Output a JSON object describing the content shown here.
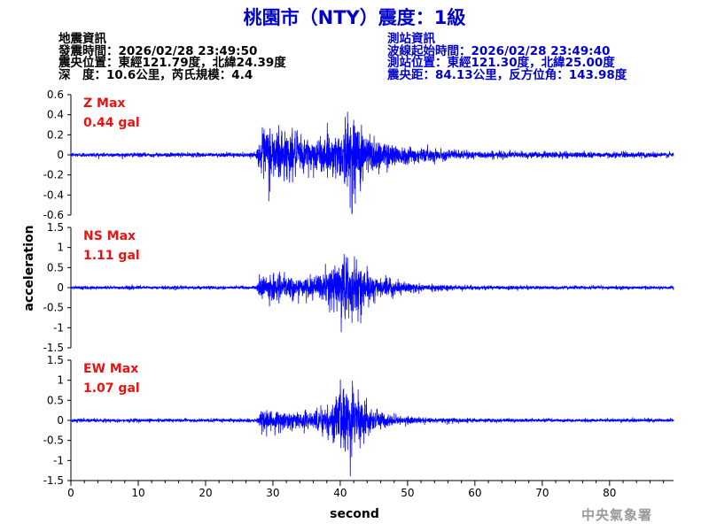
{
  "header": {
    "title": "桃園市（NTY）震度：1級"
  },
  "quake_info": {
    "heading": "地震資訊",
    "origin_time": "發震時間：2026/02/28 23:49:50",
    "epicenter": "震央位置：東經121.79度，北緯24.39度",
    "depth_magnitude": "深　度：10.6公里，芮氏規模：4.4"
  },
  "station_info": {
    "heading": "測站資訊",
    "wave_start": "波線起始時間：2026/02/28 23:49:40",
    "station_location": "測站位置：東經121.30度，北緯25.00度",
    "distance_azimuth": "震央距：84.13公里，反方位角：143.98度"
  },
  "credit": "中央氣象署",
  "colors": {
    "title": "#0000cc",
    "station_info": "#0000cc",
    "trace": "#0000ff",
    "max_label": "#ee1111",
    "credit": "#9a9a9a"
  },
  "chart_data": {
    "type": "line",
    "xlabel": "second",
    "ylabel": "acceleration",
    "xlim": [
      0,
      89.5
    ],
    "x_ticks": [
      0,
      10,
      20,
      30,
      40,
      50,
      60,
      70,
      80
    ],
    "panels": [
      {
        "name": "Z",
        "max_label": "Z Max",
        "max_value": "0.44 gal",
        "ylim": [
          -0.6,
          0.6
        ],
        "y_ticks": [
          0.6,
          0.4,
          0.2,
          0,
          -0.2,
          -0.4,
          -0.6
        ],
        "y_tick_labels": [
          "0.6",
          "0.4",
          "0.2",
          "0",
          "-0.2",
          "-0.4",
          "-0.6"
        ],
        "envelope": {
          "t": [
            0,
            27.5,
            28,
            29,
            31,
            34,
            37,
            39.5,
            41,
            42,
            43.5,
            46,
            50,
            55,
            60,
            70,
            89.5
          ],
          "amp": [
            0.02,
            0.02,
            0.15,
            0.3,
            0.27,
            0.18,
            0.16,
            0.2,
            0.35,
            0.42,
            0.25,
            0.14,
            0.08,
            0.05,
            0.035,
            0.03,
            0.025
          ]
        }
      },
      {
        "name": "NS",
        "max_label": "NS Max",
        "max_value": "1.11 gal",
        "ylim": [
          -1.5,
          1.5
        ],
        "y_ticks": [
          1.5,
          1,
          0.5,
          0,
          -0.5,
          -1,
          -1.5
        ],
        "y_tick_labels": [
          "1.5",
          "1",
          "0.5",
          "0",
          "-0.5",
          "-1",
          "-1.5"
        ],
        "envelope": {
          "t": [
            0,
            27.5,
            28,
            30,
            34,
            37,
            39.5,
            40.5,
            41.5,
            43,
            45,
            48,
            52,
            60,
            70,
            89.5
          ],
          "amp": [
            0.04,
            0.04,
            0.25,
            0.3,
            0.22,
            0.3,
            0.55,
            0.95,
            0.7,
            0.5,
            0.3,
            0.15,
            0.08,
            0.05,
            0.04,
            0.04
          ]
        }
      },
      {
        "name": "EW",
        "max_label": "EW Max",
        "max_value": "1.07 gal",
        "ylim": [
          -1.5,
          1.5
        ],
        "y_ticks": [
          1.5,
          1,
          0.5,
          0,
          -0.5,
          -1,
          -1.5
        ],
        "y_tick_labels": [
          "1.5",
          "1",
          "0.5",
          "0",
          "-0.5",
          "-1",
          "-1.5"
        ],
        "envelope": {
          "t": [
            0,
            27.5,
            28,
            30,
            34,
            37,
            39.5,
            40.5,
            41.5,
            43,
            45,
            48,
            52,
            60,
            70,
            89.5
          ],
          "amp": [
            0.04,
            0.04,
            0.2,
            0.27,
            0.2,
            0.28,
            0.5,
            0.9,
            0.75,
            0.45,
            0.25,
            0.12,
            0.07,
            0.05,
            0.04,
            0.04
          ]
        }
      }
    ]
  }
}
